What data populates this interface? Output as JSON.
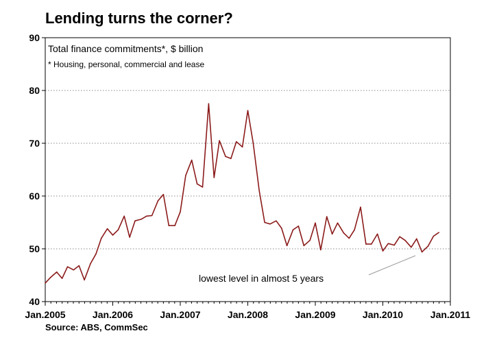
{
  "chart_data": {
    "type": "line",
    "title": "Lending turns the corner?",
    "subtitle": "Total finance commitments*, $ billion",
    "footnote": "* Housing, personal, commercial and lease",
    "annotation": "lowest level in almost 5 years",
    "source": "Source: ABS, CommSec",
    "ylim": [
      40,
      90
    ],
    "yticks": [
      40,
      50,
      60,
      70,
      80,
      90
    ],
    "xlim": [
      2005.0,
      2011.0
    ],
    "xticks": [
      {
        "value": 2005,
        "label": "Jan.2005"
      },
      {
        "value": 2006,
        "label": "Jan.2006"
      },
      {
        "value": 2007,
        "label": "Jan.2007"
      },
      {
        "value": 2008,
        "label": "Jan.2008"
      },
      {
        "value": 2009,
        "label": "Jan.2009"
      },
      {
        "value": 2010,
        "label": "Jan.2010"
      },
      {
        "value": 2011,
        "label": "Jan.2011"
      }
    ],
    "grid": "horizontal-dotted",
    "line_color": "#8b1a1a",
    "series": [
      {
        "x": [
          2005.0,
          2005.08,
          2005.17,
          2005.25,
          2005.33,
          2005.42,
          2005.5,
          2005.58,
          2005.67,
          2005.75,
          2005.83,
          2005.92,
          2006.0,
          2006.08,
          2006.17,
          2006.25,
          2006.33,
          2006.42,
          2006.5,
          2006.58,
          2006.67,
          2006.75,
          2006.83,
          2006.92,
          2007.0,
          2007.08,
          2007.17,
          2007.25,
          2007.33,
          2007.42,
          2007.5,
          2007.58,
          2007.67,
          2007.75,
          2007.83,
          2007.92,
          2008.0,
          2008.08,
          2008.17,
          2008.25,
          2008.33,
          2008.42,
          2008.5,
          2008.58,
          2008.67,
          2008.75,
          2008.83,
          2008.92,
          2009.0,
          2009.08,
          2009.17,
          2009.25,
          2009.33,
          2009.42,
          2009.5,
          2009.58,
          2009.67,
          2009.75,
          2009.83,
          2009.92,
          2010.0,
          2010.08,
          2010.17,
          2010.25,
          2010.33,
          2010.42,
          2010.5,
          2010.58,
          2010.67,
          2010.75,
          2010.83
        ],
        "values": [
          43.5,
          44.6,
          45.6,
          44.4,
          46.6,
          46.0,
          46.8,
          44.1,
          47.2,
          49.0,
          52.0,
          53.8,
          52.6,
          53.6,
          56.2,
          52.2,
          55.3,
          55.6,
          56.2,
          56.3,
          59.1,
          60.3,
          54.4,
          54.4,
          57.0,
          63.9,
          66.8,
          62.3,
          61.7,
          77.5,
          63.5,
          70.5,
          67.5,
          67.1,
          70.3,
          69.3,
          76.2,
          70.0,
          61.0,
          55.0,
          54.7,
          55.3,
          53.9,
          50.6,
          53.6,
          54.3,
          50.6,
          51.6,
          54.9,
          49.8,
          56.1,
          52.8,
          54.9,
          53.0,
          52.0,
          53.6,
          57.9,
          50.9,
          50.9,
          52.8,
          49.6,
          51.0,
          50.7,
          52.3,
          51.6,
          50.3,
          51.9,
          49.4,
          50.5,
          52.4,
          53.1
        ]
      }
    ]
  }
}
